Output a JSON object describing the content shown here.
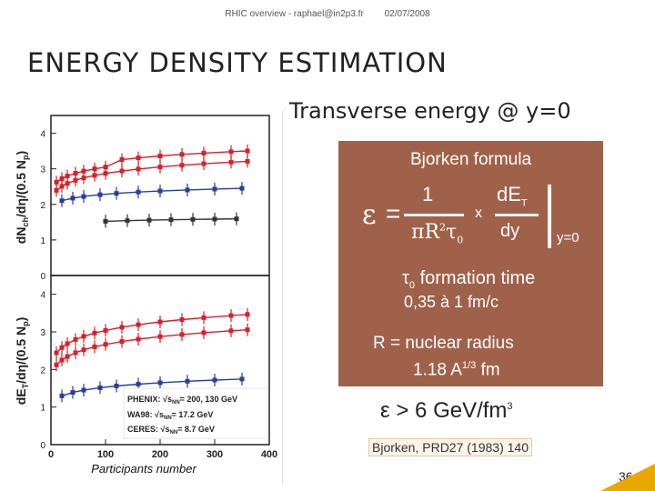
{
  "header": {
    "author": "RHIC overview - raphael@in2p3.fr",
    "date": "02/07/2008"
  },
  "title": "ENERGY DENSITY ESTIMATION",
  "subtitle": "Transverse  energy @ y=0",
  "figure": {
    "top_ylabel": "dN",
    "top_ylabel_sub": "ch",
    "top_ylabel_rest": "/dη/(0.5 N",
    "top_ylabel_sub2": "p",
    "top_ylabel_end": ")",
    "bottom_ylabel": "dE",
    "bottom_ylabel_sub": "T",
    "bottom_ylabel_rest": "/dη/(0.5 N",
    "bottom_ylabel_sub2": "p",
    "bottom_ylabel_end": ")",
    "top_yticks": [
      "4",
      "3",
      "2",
      "1",
      "0"
    ],
    "bottom_yticks": [
      "4",
      "3",
      "2",
      "1",
      "0"
    ],
    "xticks": [
      "0",
      "100",
      "200",
      "300",
      "400"
    ],
    "xlabel": "Participants number",
    "legend": [
      {
        "name": "PHENIX:",
        "sqrt": "√s",
        "sub": "NN",
        "value": "= 200, 130 GeV",
        "color": "#d81f2a"
      },
      {
        "name": "WA98:",
        "sqrt": "√s",
        "sub": "NN",
        "value": "= 17.2 GeV",
        "color": "#2b3c9a"
      },
      {
        "name": "CERES:",
        "sqrt": "√s",
        "sub": "NN",
        "value": "= 8.7 GeV",
        "color": "#333333"
      }
    ],
    "colors": {
      "red": "#d81f2a",
      "blue": "#2b3c9a",
      "black": "#333333"
    }
  },
  "box": {
    "title": "Bjorken formula",
    "formula": {
      "epsilon": "ε",
      "equals": "=",
      "numerator": "1",
      "denominator_pi": "πR",
      "denominator_sup": "2",
      "denominator_tau": "τ",
      "denominator_sub": "0",
      "times": "x",
      "det_num": "dE",
      "det_sub": "T",
      "det_den": "dy",
      "evaluated_at": "y=0"
    },
    "tau_symbol": "τ",
    "tau_sub": "0",
    "tau_text": " formation time",
    "tau_range": "0,35 à 1 fm/c",
    "radius_text": "R = nuclear radius",
    "radius_formula": "1.18 A",
    "radius_sup": "1/3",
    "radius_unit": " fm",
    "background_color": "#a0614a"
  },
  "result": {
    "epsilon": "ε",
    "text": " > 6 GeV/fm",
    "sup": "3"
  },
  "reference": "Bjorken, PRD27 (1983) 140",
  "page_number": "36"
}
